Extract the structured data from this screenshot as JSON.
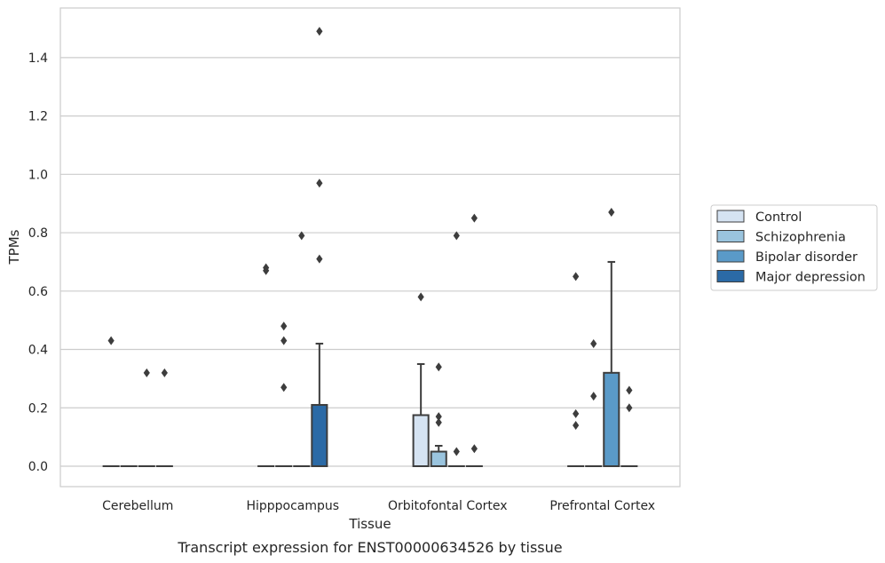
{
  "chart_data": {
    "type": "box",
    "xlabel": "Tissue",
    "ylabel": "TPMs",
    "caption": "Transcript expression for ENST00000634526 by tissue",
    "ylim": [
      -0.07,
      1.57
    ],
    "yticks": [
      0.0,
      0.2,
      0.4,
      0.6,
      0.8,
      1.0,
      1.2,
      1.4
    ],
    "ytick_labels": [
      "0.0",
      "0.2",
      "0.4",
      "0.6",
      "0.8",
      "1.0",
      "1.2",
      "1.4"
    ],
    "grid": "horizontal",
    "legend_placement": "right-center",
    "categories": [
      "Cerebellum",
      "Hipppocampus",
      "Orbitofontal Cortex",
      "Prefrontal Cortex"
    ],
    "series": [
      {
        "name": "Control",
        "color": "#d5e3f2",
        "boxes": [
          {
            "q1": 0.0,
            "median": 0.0,
            "q3": 0.0,
            "whisker_low": 0.0,
            "whisker_high": 0.0,
            "outliers": [
              0.43
            ]
          },
          {
            "q1": 0.0,
            "median": 0.0,
            "q3": 0.0,
            "whisker_low": 0.0,
            "whisker_high": 0.0,
            "outliers": [
              0.68,
              0.67
            ]
          },
          {
            "q1": 0.0,
            "median": 0.0,
            "q3": 0.175,
            "whisker_low": 0.0,
            "whisker_high": 0.35,
            "outliers": [
              0.58
            ]
          },
          {
            "q1": 0.0,
            "median": 0.0,
            "q3": 0.0,
            "whisker_low": 0.0,
            "whisker_high": 0.0,
            "outliers": [
              0.65,
              0.18,
              0.14
            ]
          }
        ]
      },
      {
        "name": "Schizophrenia",
        "color": "#9ac4de",
        "boxes": [
          {
            "q1": 0.0,
            "median": 0.0,
            "q3": 0.0,
            "whisker_low": 0.0,
            "whisker_high": 0.0,
            "outliers": []
          },
          {
            "q1": 0.0,
            "median": 0.0,
            "q3": 0.0,
            "whisker_low": 0.0,
            "whisker_high": 0.0,
            "outliers": [
              0.48,
              0.43,
              0.27
            ]
          },
          {
            "q1": 0.0,
            "median": 0.0,
            "q3": 0.05,
            "whisker_low": 0.0,
            "whisker_high": 0.07,
            "outliers": [
              0.34,
              0.17,
              0.15
            ]
          },
          {
            "q1": 0.0,
            "median": 0.0,
            "q3": 0.0,
            "whisker_low": 0.0,
            "whisker_high": 0.0,
            "outliers": [
              0.42,
              0.24
            ]
          }
        ]
      },
      {
        "name": "Bipolar disorder",
        "color": "#5a9ac8",
        "boxes": [
          {
            "q1": 0.0,
            "median": 0.0,
            "q3": 0.0,
            "whisker_low": 0.0,
            "whisker_high": 0.0,
            "outliers": [
              0.32
            ]
          },
          {
            "q1": 0.0,
            "median": 0.0,
            "q3": 0.0,
            "whisker_low": 0.0,
            "whisker_high": 0.0,
            "outliers": [
              0.79
            ]
          },
          {
            "q1": 0.0,
            "median": 0.0,
            "q3": 0.0,
            "whisker_low": 0.0,
            "whisker_high": 0.0,
            "outliers": [
              0.79,
              0.05
            ]
          },
          {
            "q1": 0.0,
            "median": 0.0,
            "q3": 0.32,
            "whisker_low": 0.0,
            "whisker_high": 0.7,
            "outliers": [
              0.87
            ]
          }
        ]
      },
      {
        "name": "Major depression",
        "color": "#2b6aa6",
        "boxes": [
          {
            "q1": 0.0,
            "median": 0.0,
            "q3": 0.0,
            "whisker_low": 0.0,
            "whisker_high": 0.0,
            "outliers": [
              0.32
            ]
          },
          {
            "q1": 0.0,
            "median": 0.0,
            "q3": 0.21,
            "whisker_low": 0.0,
            "whisker_high": 0.42,
            "outliers": [
              1.49,
              0.97,
              0.71
            ]
          },
          {
            "q1": 0.0,
            "median": 0.0,
            "q3": 0.0,
            "whisker_low": 0.0,
            "whisker_high": 0.0,
            "outliers": [
              0.85,
              0.06
            ]
          },
          {
            "q1": 0.0,
            "median": 0.0,
            "q3": 0.0,
            "whisker_low": 0.0,
            "whisker_high": 0.0,
            "outliers": [
              0.26,
              0.2
            ]
          }
        ]
      }
    ]
  }
}
